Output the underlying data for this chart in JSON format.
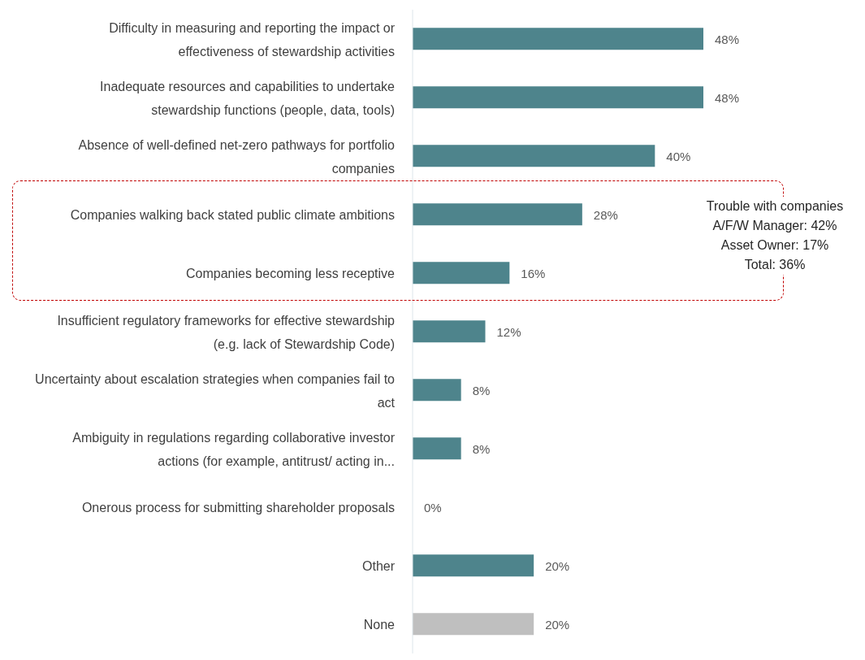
{
  "chart_data": {
    "type": "bar",
    "orientation": "horizontal",
    "categories": [
      "Difficulty in measuring and reporting the impact or effectiveness of stewardship activities",
      "Inadequate resources and capabilities to undertake stewardship functions (people, data, tools)",
      "Absence of well-defined net-zero pathways for portfolio companies",
      "Companies walking back stated public climate ambitions",
      "Companies becoming less receptive",
      "Insufficient regulatory frameworks for effective stewardship (e.g. lack of Stewardship Code)",
      "Uncertainty about escalation strategies when companies fail to act",
      "Ambiguity in regulations regarding collaborative investor actions (for example, antitrust/ acting in...",
      "Onerous process for submitting shareholder proposals",
      "Other",
      "None"
    ],
    "values": [
      48,
      48,
      40,
      28,
      16,
      12,
      8,
      8,
      0,
      20,
      20
    ],
    "colors": [
      "#4e848c",
      "#4e848c",
      "#4e848c",
      "#4e848c",
      "#4e848c",
      "#4e848c",
      "#4e848c",
      "#4e848c",
      "#4e848c",
      "#4e848c",
      "#bfbfbf"
    ],
    "value_labels": [
      "48%",
      "48%",
      "40%",
      "28%",
      "16%",
      "12%",
      "8%",
      "8%",
      "0%",
      "20%",
      "20%"
    ],
    "xlim": [
      0,
      48
    ],
    "annotations": [
      "Trouble with companies\nA/F/W Manager: 42%\nAsset Owner: 17%\nTotal: 36%"
    ]
  }
}
